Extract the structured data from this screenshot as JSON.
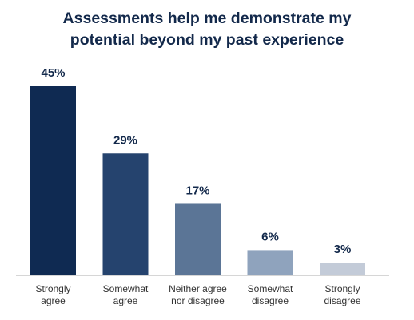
{
  "chart_data": {
    "type": "bar",
    "title_lines": [
      "Assessments help me demonstrate my",
      "potential beyond my past experience"
    ],
    "categories": [
      [
        "Strongly",
        "agree"
      ],
      [
        "Somewhat",
        "agree"
      ],
      [
        "Neither agree",
        "nor disagree"
      ],
      [
        "Somewhat",
        "disagree"
      ],
      [
        "Strongly",
        "disagree"
      ]
    ],
    "values": [
      45,
      29,
      17,
      6,
      3
    ],
    "value_labels": [
      "45%",
      "29%",
      "17%",
      "6%",
      "3%"
    ],
    "colors": [
      "#0f2a52",
      "#25436e",
      "#5b7596",
      "#8fa3bd",
      "#c3cbd8"
    ],
    "ylim": [
      0,
      45
    ],
    "grid": false,
    "legend": "none"
  }
}
